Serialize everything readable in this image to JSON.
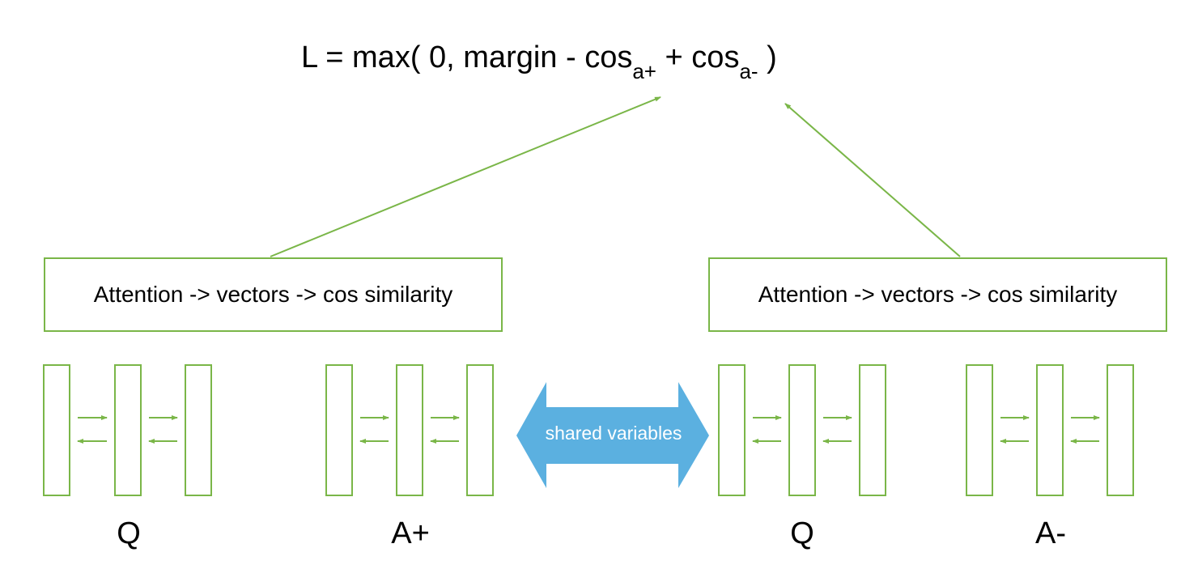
{
  "formula": {
    "main": "L = max( 0, margin - cos",
    "sub_pos": "a+",
    "middle": " + cos",
    "sub_neg": "a-",
    "end": " )"
  },
  "boxes": {
    "left_label": "Attention -> vectors -> cos similarity",
    "right_label": "Attention -> vectors -> cos similarity"
  },
  "groups": [
    {
      "label": "Q"
    },
    {
      "label": "A+"
    },
    {
      "label": "Q"
    },
    {
      "label": "A-"
    }
  ],
  "shared": {
    "label": "shared variables"
  },
  "colors": {
    "green": "#7ab648",
    "blue": "#5bb0e0",
    "text": "#000000"
  }
}
